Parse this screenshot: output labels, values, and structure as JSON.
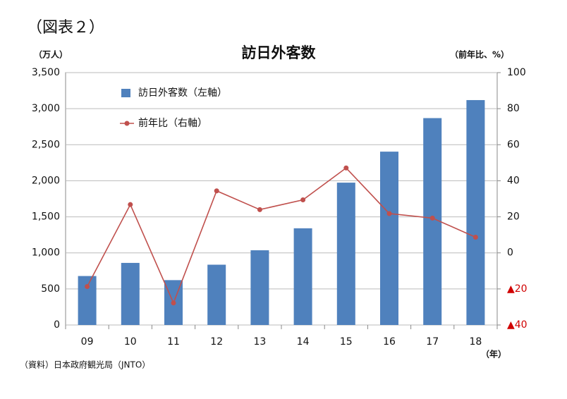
{
  "label": "（図表２）",
  "chart_data": {
    "type": "bar_line",
    "title": "訪日外客数",
    "y_axis_label": "（万人）",
    "y2_axis_label": "（前年比、%）",
    "x_axis_label": "（年）",
    "source": "（資料）日本政府観光局（JNTO）",
    "categories": [
      "09",
      "10",
      "11",
      "12",
      "13",
      "14",
      "15",
      "16",
      "17",
      "18"
    ],
    "series": [
      {
        "name": "訪日外客数（左軸）",
        "type": "bar",
        "color": "#4f81bd",
        "values": [
          679,
          861,
          622,
          836,
          1036,
          1341,
          1974,
          2404,
          2869,
          3119
        ]
      },
      {
        "name": "前年比（右軸）",
        "type": "line",
        "axis": "y2",
        "color": "#c0504d",
        "values": [
          -18.7,
          26.8,
          -27.8,
          34.4,
          24.0,
          29.4,
          47.1,
          21.8,
          19.3,
          8.7
        ]
      }
    ],
    "ylim": [
      0,
      3500
    ],
    "yticks": [
      0,
      500,
      {
        "value": 1000,
        "label": "1,000"
      },
      {
        "value": 1500,
        "label": "1,500"
      },
      {
        "value": 2000,
        "label": "2,000"
      },
      {
        "value": 2500,
        "label": "2,500"
      },
      {
        "value": 3000,
        "label": "3,000"
      },
      {
        "value": 3500,
        "label": "3,500"
      }
    ],
    "y2lim": [
      -40,
      100
    ],
    "y2ticks": [
      {
        "value": -40,
        "label": "▲40"
      },
      {
        "value": -20,
        "label": "▲20"
      },
      0,
      20,
      40,
      60,
      80,
      100
    ],
    "grid": true,
    "legend": "upper left"
  }
}
